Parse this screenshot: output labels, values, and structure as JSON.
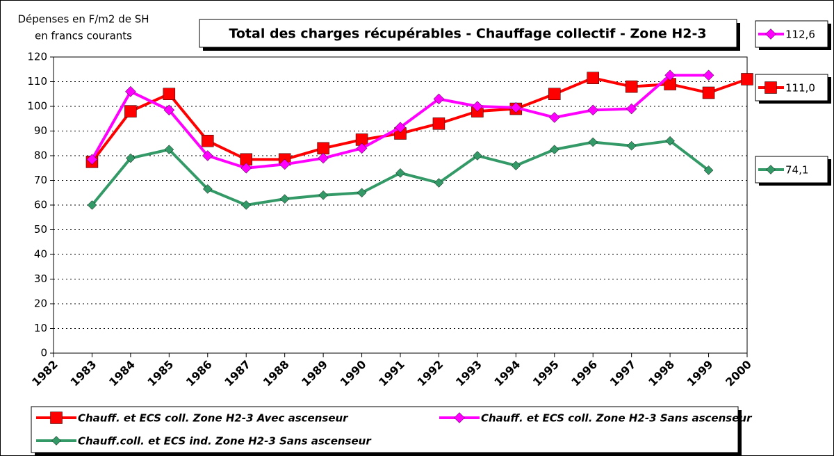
{
  "chart_data": {
    "type": "line",
    "title": "Total des charges récupérables - Chauffage collectif - Zone H2-3",
    "y_label": [
      "Dépenses en F/m2 de SH",
      "en francs courants"
    ],
    "x": [
      1983,
      1984,
      1985,
      1986,
      1987,
      1988,
      1989,
      1990,
      1991,
      1992,
      1993,
      1994,
      1995,
      1996,
      1997,
      1998,
      1999,
      2000
    ],
    "xlim": [
      1982,
      2000
    ],
    "xticks": [
      1982,
      1983,
      1984,
      1985,
      1986,
      1987,
      1988,
      1989,
      1990,
      1991,
      1992,
      1993,
      1994,
      1995,
      1996,
      1997,
      1998,
      1999,
      2000
    ],
    "ylim": [
      0,
      120
    ],
    "yticks": [
      0,
      10,
      20,
      30,
      40,
      50,
      60,
      70,
      80,
      90,
      100,
      110,
      120
    ],
    "grid": true,
    "series": [
      {
        "name": "Chauff. et ECS coll. Zone H2-3 Avec ascenseur",
        "color": "#ff0000",
        "marker": "square",
        "values": [
          77.5,
          98,
          105,
          86,
          78.5,
          78.5,
          83,
          86.5,
          89,
          93,
          98,
          99,
          105,
          111.5,
          108,
          109,
          105.5,
          111
        ],
        "value_labels": [
          null,
          null,
          null,
          null,
          null,
          null,
          null,
          null,
          null,
          null,
          null,
          null,
          null,
          null,
          null,
          null,
          null,
          "111,0"
        ]
      },
      {
        "name": "Chauff. et ECS coll. Zone H2-3 Sans ascenseur",
        "color": "#ff00ff",
        "marker": "diamond",
        "values": [
          78.5,
          106,
          98.5,
          80,
          75,
          76.5,
          79,
          83,
          91.5,
          103,
          100,
          99.5,
          95.5,
          98.5,
          99,
          112.6,
          112.6,
          null
        ],
        "value_labels": [
          null,
          null,
          null,
          null,
          null,
          null,
          null,
          null,
          null,
          null,
          null,
          null,
          null,
          null,
          null,
          null,
          "112,6",
          null
        ]
      },
      {
        "name": "Chauff.coll. et ECS ind. Zone H2-3 Sans ascenseur",
        "color": "#339966",
        "marker": "diamond",
        "values": [
          60,
          79,
          82.5,
          66.5,
          60,
          62.5,
          64,
          65,
          73,
          69,
          80,
          76,
          82.5,
          85.5,
          84,
          86,
          74.1,
          null
        ],
        "value_labels": [
          null,
          null,
          null,
          null,
          null,
          null,
          null,
          null,
          null,
          null,
          null,
          null,
          null,
          null,
          null,
          null,
          "74,1",
          null
        ]
      }
    ]
  }
}
